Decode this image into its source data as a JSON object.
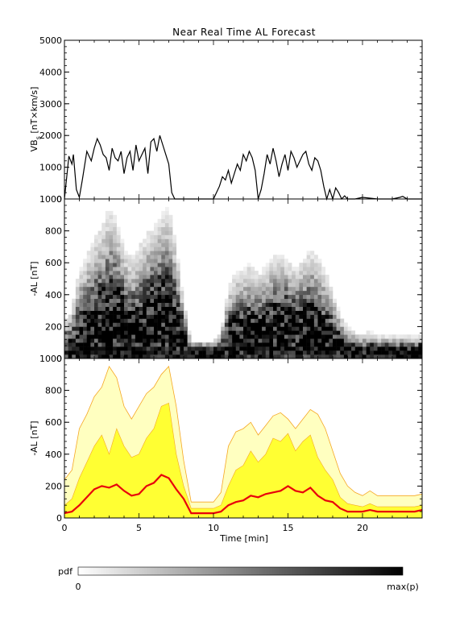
{
  "figure": {
    "title": "Near Real Time AL Forecast"
  },
  "chart_data": [
    {
      "type": "line",
      "panel": "vbs",
      "ylabel_main": "VB",
      "ylabel_sub": "s",
      "ylabel_units": " [nT×km/s]",
      "xlim": [
        0,
        24
      ],
      "ylim": [
        0,
        5000
      ],
      "yticks": [
        0,
        1000,
        2000,
        3000,
        4000,
        5000
      ],
      "line_color": "#000000",
      "series": [
        {
          "x": [
            0.0,
            0.3,
            0.5,
            0.6,
            0.8,
            1.0,
            1.2,
            1.5,
            1.8,
            2.0,
            2.2,
            2.4,
            2.6,
            2.8,
            3.0,
            3.2,
            3.4,
            3.6,
            3.8,
            4.0,
            4.2,
            4.4,
            4.6,
            4.8,
            5.0,
            5.2,
            5.4,
            5.6,
            5.8,
            6.0,
            6.2,
            6.4,
            6.6,
            6.8,
            7.0,
            7.2,
            7.4,
            7.6,
            8.0,
            9.0,
            10.0,
            10.4,
            10.6,
            10.8,
            11.0,
            11.2,
            11.4,
            11.6,
            11.8,
            12.0,
            12.2,
            12.4,
            12.6,
            12.8,
            13.0,
            13.2,
            13.4,
            13.6,
            13.8,
            14.0,
            14.2,
            14.4,
            14.6,
            14.8,
            15.0,
            15.2,
            15.4,
            15.6,
            15.8,
            16.0,
            16.2,
            16.4,
            16.6,
            16.8,
            17.0,
            17.2,
            17.4,
            17.6,
            17.8,
            18.0,
            18.2,
            18.4,
            18.6,
            18.8,
            19.0,
            19.5,
            20.0,
            21.0,
            22.0,
            22.5,
            22.7,
            23.0,
            24.0
          ],
          "y": [
            0,
            1350,
            1100,
            1400,
            300,
            50,
            600,
            1500,
            1200,
            1600,
            1900,
            1700,
            1400,
            1300,
            900,
            1600,
            1300,
            1200,
            1500,
            800,
            1300,
            1500,
            900,
            1700,
            1200,
            1400,
            1600,
            800,
            1800,
            1900,
            1500,
            2000,
            1700,
            1400,
            1100,
            200,
            0,
            0,
            0,
            0,
            0,
            400,
            700,
            600,
            900,
            500,
            800,
            1100,
            900,
            1400,
            1200,
            1500,
            1300,
            900,
            0,
            300,
            800,
            1400,
            1100,
            1600,
            1200,
            700,
            1100,
            1400,
            900,
            1500,
            1300,
            1000,
            1200,
            1400,
            1500,
            1100,
            900,
            1300,
            1200,
            900,
            400,
            0,
            300,
            0,
            350,
            200,
            0,
            100,
            0,
            0,
            50,
            0,
            0,
            50,
            80,
            0,
            0
          ]
        }
      ]
    },
    {
      "type": "heatmap",
      "panel": "pdf",
      "ylabel": "-AL [nT]",
      "xlim": [
        0,
        24
      ],
      "ylim": [
        0,
        1000
      ],
      "yticks": [
        0,
        200,
        400,
        600,
        800,
        1000
      ],
      "colorscale": [
        "#ffffff",
        "#000000"
      ]
    },
    {
      "type": "area",
      "panel": "forecast",
      "ylabel": "-AL [nT]",
      "xlabel": "Time [min]",
      "xlim": [
        0,
        24
      ],
      "ylim": [
        0,
        1000
      ],
      "xticks": [
        0,
        5,
        10,
        15,
        20
      ],
      "yticks": [
        0,
        200,
        400,
        600,
        800,
        1000
      ],
      "band_colors": {
        "outer": "#ffffc0",
        "inner": "#ffff33",
        "edge": "#f5a623",
        "median": "#e8000b"
      },
      "x": [
        0.0,
        0.5,
        1.0,
        1.5,
        2.0,
        2.5,
        3.0,
        3.5,
        4.0,
        4.5,
        5.0,
        5.5,
        6.0,
        6.5,
        7.0,
        7.5,
        8.0,
        8.5,
        9.0,
        9.5,
        10.0,
        10.5,
        11.0,
        11.5,
        12.0,
        12.5,
        13.0,
        13.5,
        14.0,
        14.5,
        15.0,
        15.5,
        16.0,
        16.5,
        17.0,
        17.5,
        18.0,
        18.5,
        19.0,
        19.5,
        20.0,
        20.5,
        21.0,
        21.5,
        22.0,
        22.5,
        23.0,
        23.5,
        24.0
      ],
      "median": [
        30,
        40,
        80,
        130,
        180,
        200,
        190,
        210,
        170,
        140,
        150,
        200,
        220,
        270,
        250,
        180,
        120,
        30,
        30,
        30,
        30,
        40,
        80,
        100,
        110,
        140,
        130,
        150,
        160,
        170,
        200,
        170,
        160,
        190,
        140,
        110,
        100,
        60,
        40,
        40,
        40,
        50,
        40,
        40,
        40,
        40,
        40,
        40,
        50
      ],
      "inner_upper": [
        80,
        120,
        250,
        350,
        450,
        520,
        400,
        560,
        450,
        380,
        400,
        500,
        560,
        700,
        720,
        400,
        200,
        60,
        60,
        60,
        60,
        80,
        200,
        300,
        330,
        420,
        350,
        400,
        500,
        480,
        530,
        420,
        480,
        520,
        380,
        300,
        240,
        130,
        90,
        80,
        70,
        90,
        70,
        70,
        70,
        70,
        70,
        70,
        80
      ],
      "outer_upper": [
        240,
        300,
        560,
        650,
        760,
        820,
        950,
        880,
        700,
        620,
        700,
        780,
        820,
        900,
        950,
        700,
        360,
        100,
        100,
        100,
        100,
        160,
        450,
        540,
        560,
        600,
        520,
        580,
        640,
        660,
        620,
        560,
        620,
        680,
        650,
        560,
        420,
        280,
        200,
        160,
        140,
        170,
        140,
        140,
        140,
        140,
        140,
        140,
        150
      ]
    }
  ],
  "colorbar": {
    "label": "pdf",
    "min_label": "0",
    "max_label": "max(p)",
    "colors": [
      "#ffffff",
      "#000000"
    ]
  }
}
